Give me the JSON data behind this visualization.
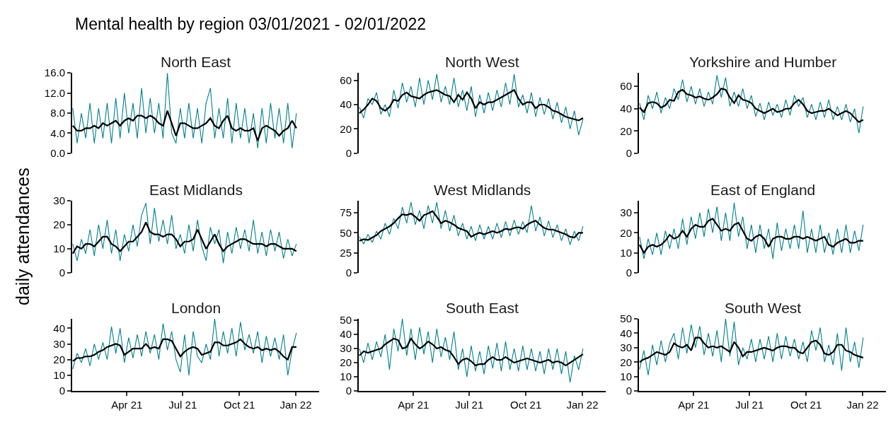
{
  "chart_data": [
    {
      "type": "line",
      "title": "North East",
      "categories": [
        null,
        null,
        null,
        null,
        null,
        null,
        null,
        null,
        null,
        null,
        null,
        null,
        null,
        null,
        null,
        null,
        null,
        null,
        null,
        null,
        null,
        null,
        null,
        null,
        null,
        null,
        null,
        null,
        null,
        null,
        null,
        null,
        null,
        null,
        null,
        null,
        null,
        null,
        null,
        null,
        null,
        null,
        null,
        null,
        null,
        null,
        null,
        null,
        null,
        null,
        null,
        null,
        null
      ],
      "annotations": [
        "Mental health by region 03/01/2021 - 02/01/2022"
      ],
      "tick_labels": "y",
      "ylim": [
        0,
        16
      ],
      "yticks": [
        {
          "value": 0,
          "label": "0.0"
        },
        {
          "value": 4,
          "label": "4.0"
        },
        {
          "value": 8,
          "label": "8.0"
        },
        {
          "value": 12,
          "label": "12.0"
        },
        {
          "value": 16,
          "label": "16.0"
        }
      ],
      "series": [
        {
          "color": "#00808f",
          "values": [
            9,
            2,
            8,
            3,
            10,
            2,
            9,
            3,
            10,
            2,
            11,
            3,
            12,
            4,
            10,
            3,
            13,
            4,
            11,
            4,
            10,
            3,
            16,
            4,
            2,
            9,
            3,
            10,
            3,
            9,
            2,
            10,
            13,
            3,
            9,
            3,
            11,
            2,
            10,
            3,
            9,
            2,
            8,
            1,
            9,
            2,
            10,
            3,
            9,
            2,
            10,
            1,
            8
          ]
        },
        {
          "color": "#000000",
          "values": [
            5.5,
            4.5,
            4.5,
            5,
            5,
            5.5,
            5,
            6,
            5.5,
            6,
            6.5,
            5.5,
            6.5,
            7,
            6.5,
            7.5,
            7.5,
            7,
            7.5,
            7,
            6,
            5.5,
            8.5,
            6,
            3.5,
            6,
            6,
            5.5,
            5,
            5,
            5.5,
            6,
            7,
            5.5,
            5,
            6.5,
            7.5,
            5,
            4.5,
            5,
            4.5,
            4.5,
            5,
            2.5,
            5,
            5.5,
            5,
            4.5,
            3.5,
            4.5,
            5,
            6.5,
            5
          ]
        }
      ]
    },
    {
      "type": "line",
      "title": "North West",
      "categories": [
        null,
        null,
        null,
        null,
        null,
        null,
        null,
        null,
        null,
        null,
        null,
        null,
        null,
        null,
        null,
        null,
        null,
        null,
        null,
        null,
        null,
        null,
        null,
        null,
        null,
        null,
        null,
        null,
        null,
        null,
        null,
        null,
        null,
        null,
        null,
        null,
        null,
        null,
        null,
        null,
        null,
        null,
        null,
        null,
        null,
        null,
        null,
        null,
        null,
        null,
        null,
        null,
        null
      ],
      "tick_labels": "y",
      "ylim": [
        0,
        66
      ],
      "yticks": [
        0,
        20,
        40,
        60
      ],
      "series": [
        {
          "color": "#00808f",
          "values": [
            38,
            29,
            45,
            40,
            50,
            32,
            40,
            30,
            52,
            37,
            58,
            42,
            55,
            38,
            62,
            40,
            60,
            44,
            65,
            42,
            55,
            40,
            62,
            38,
            52,
            35,
            55,
            30,
            48,
            33,
            50,
            35,
            52,
            38,
            58,
            40,
            65,
            38,
            48,
            33,
            50,
            30,
            46,
            32,
            45,
            28,
            42,
            25,
            38,
            20,
            35,
            15,
            28
          ]
        },
        {
          "color": "#000000",
          "values": [
            33,
            36,
            40,
            45,
            43,
            37,
            35,
            38,
            44,
            43,
            48,
            50,
            47,
            46,
            45,
            48,
            50,
            51,
            52,
            50,
            48,
            47,
            42,
            48,
            44,
            50,
            45,
            37,
            42,
            40,
            42,
            42,
            44,
            46,
            48,
            50,
            52,
            45,
            40,
            42,
            42,
            37,
            40,
            40,
            38,
            35,
            34,
            32,
            30,
            29,
            28,
            27,
            29
          ]
        }
      ]
    },
    {
      "type": "line",
      "title": "Yorkshire and Humber",
      "categories": [
        null,
        null,
        null,
        null,
        null,
        null,
        null,
        null,
        null,
        null,
        null,
        null,
        null,
        null,
        null,
        null,
        null,
        null,
        null,
        null,
        null,
        null,
        null,
        null,
        null,
        null,
        null,
        null,
        null,
        null,
        null,
        null,
        null,
        null,
        null,
        null,
        null,
        null,
        null,
        null,
        null,
        null,
        null,
        null,
        null,
        null,
        null,
        null,
        null,
        null,
        null,
        null,
        null
      ],
      "tick_labels": "y",
      "ylim": [
        0,
        72
      ],
      "yticks": [
        0,
        20,
        40,
        60
      ],
      "series": [
        {
          "color": "#00808f",
          "values": [
            45,
            30,
            52,
            40,
            55,
            36,
            50,
            40,
            58,
            48,
            66,
            46,
            60,
            44,
            58,
            42,
            55,
            44,
            70,
            50,
            68,
            42,
            55,
            42,
            58,
            40,
            52,
            33,
            45,
            30,
            46,
            34,
            44,
            32,
            48,
            34,
            52,
            42,
            50,
            32,
            44,
            30,
            46,
            32,
            48,
            30,
            42,
            30,
            44,
            28,
            40,
            18,
            42
          ]
        },
        {
          "color": "#000000",
          "values": [
            41,
            37,
            45,
            46,
            45,
            41,
            43,
            48,
            47,
            55,
            57,
            53,
            52,
            50,
            51,
            49,
            48,
            50,
            53,
            58,
            57,
            50,
            45,
            52,
            48,
            47,
            45,
            40,
            38,
            36,
            38,
            40,
            37,
            38,
            40,
            40,
            45,
            48,
            44,
            38,
            36,
            37,
            38,
            38,
            40,
            37,
            34,
            36,
            38,
            36,
            32,
            28,
            30
          ]
        }
      ]
    },
    {
      "type": "line",
      "title": "East Midlands",
      "categories": [
        null,
        null,
        null,
        null,
        null,
        null,
        null,
        null,
        null,
        null,
        null,
        null,
        null,
        null,
        null,
        null,
        null,
        null,
        null,
        null,
        null,
        null,
        null,
        null,
        null,
        null,
        null,
        null,
        null,
        null,
        null,
        null,
        null,
        null,
        null,
        null,
        null,
        null,
        null,
        null,
        null,
        null,
        null,
        null,
        null,
        null,
        null,
        null,
        null,
        null,
        null,
        null,
        null
      ],
      "ylabel": "daily attendances",
      "tick_labels": "y",
      "ylim": [
        0,
        30
      ],
      "yticks": [
        0,
        10,
        20,
        30
      ],
      "series": [
        {
          "color": "#00808f",
          "values": [
            12,
            5,
            14,
            8,
            18,
            7,
            20,
            10,
            22,
            8,
            18,
            5,
            16,
            9,
            20,
            11,
            24,
            29,
            12,
            27,
            13,
            22,
            12,
            24,
            10,
            16,
            8,
            20,
            9,
            22,
            11,
            5,
            19,
            12,
            18,
            4,
            17,
            8,
            19,
            10,
            18,
            9,
            22,
            8,
            17,
            7,
            18,
            9,
            17,
            6,
            14,
            7,
            12
          ]
        },
        {
          "color": "#000000",
          "values": [
            8,
            11,
            10,
            12,
            12,
            11,
            13,
            15,
            15,
            12,
            11,
            9,
            11,
            13,
            13,
            15,
            17,
            21,
            17,
            16,
            16,
            15,
            16,
            16,
            14,
            11,
            13,
            13,
            14,
            18,
            14,
            10,
            13,
            16,
            12,
            9,
            11,
            12,
            13,
            14,
            14,
            13,
            12,
            12,
            12,
            11,
            12,
            12,
            11,
            10,
            10,
            10,
            9
          ]
        }
      ]
    },
    {
      "type": "line",
      "title": "West Midlands",
      "categories": [
        null,
        null,
        null,
        null,
        null,
        null,
        null,
        null,
        null,
        null,
        null,
        null,
        null,
        null,
        null,
        null,
        null,
        null,
        null,
        null,
        null,
        null,
        null,
        null,
        null,
        null,
        null,
        null,
        null,
        null,
        null,
        null,
        null,
        null,
        null,
        null,
        null,
        null,
        null,
        null,
        null,
        null,
        null,
        null,
        null,
        null,
        null,
        null,
        null,
        null,
        null,
        null,
        null
      ],
      "tick_labels": "y",
      "ylim": [
        0,
        90
      ],
      "yticks": [
        0,
        25,
        50,
        75
      ],
      "series": [
        {
          "color": "#00808f",
          "values": [
            45,
            36,
            48,
            38,
            52,
            42,
            62,
            48,
            68,
            55,
            82,
            62,
            88,
            60,
            78,
            55,
            84,
            62,
            88,
            55,
            78,
            52,
            72,
            46,
            62,
            42,
            58,
            40,
            60,
            42,
            58,
            42,
            62,
            44,
            64,
            46,
            66,
            48,
            64,
            50,
            84,
            52,
            70,
            46,
            65,
            44,
            60,
            40,
            55,
            35,
            52,
            40,
            58
          ]
        },
        {
          "color": "#000000",
          "values": [
            40,
            42,
            41,
            44,
            47,
            52,
            55,
            58,
            62,
            68,
            73,
            72,
            74,
            70,
            65,
            72,
            74,
            77,
            70,
            62,
            65,
            63,
            60,
            56,
            54,
            52,
            45,
            48,
            50,
            48,
            50,
            52,
            50,
            52,
            55,
            54,
            56,
            57,
            55,
            60,
            63,
            65,
            60,
            56,
            54,
            54,
            52,
            50,
            48,
            45,
            44,
            50,
            50
          ]
        }
      ]
    },
    {
      "type": "line",
      "title": "East of England",
      "categories": [
        null,
        null,
        null,
        null,
        null,
        null,
        null,
        null,
        null,
        null,
        null,
        null,
        null,
        null,
        null,
        null,
        null,
        null,
        null,
        null,
        null,
        null,
        null,
        null,
        null,
        null,
        null,
        null,
        null,
        null,
        null,
        null,
        null,
        null,
        null,
        null,
        null,
        null,
        null,
        null,
        null,
        null,
        null,
        null,
        null,
        null,
        null,
        null,
        null,
        null,
        null,
        null,
        null
      ],
      "tick_labels": "y",
      "ylim": [
        0,
        36
      ],
      "yticks": [
        0,
        10,
        20,
        30
      ],
      "series": [
        {
          "color": "#00808f",
          "values": [
            18,
            7,
            17,
            9,
            20,
            9,
            21,
            12,
            22,
            12,
            27,
            14,
            28,
            17,
            30,
            18,
            32,
            20,
            33,
            16,
            30,
            16,
            35,
            18,
            28,
            12,
            24,
            10,
            24,
            12,
            22,
            7,
            25,
            11,
            22,
            12,
            24,
            12,
            31,
            10,
            22,
            10,
            24,
            10,
            20,
            9,
            22,
            10,
            24,
            10,
            21,
            11,
            24
          ]
        },
        {
          "color": "#000000",
          "values": [
            14,
            10,
            13,
            14,
            13,
            14,
            16,
            19,
            17,
            18,
            21,
            18,
            22,
            24,
            23,
            23,
            26,
            27,
            24,
            21,
            22,
            21,
            24,
            25,
            21,
            17,
            16,
            18,
            19,
            17,
            13,
            17,
            18,
            18,
            17,
            17,
            18,
            18,
            17,
            18,
            17,
            16,
            17,
            18,
            14,
            13,
            15,
            16,
            17,
            15,
            15,
            16,
            16
          ]
        }
      ]
    },
    {
      "type": "line",
      "title": "London",
      "x": [
        "2021-01-03",
        "2021-01-10",
        "2021-01-17",
        "2021-01-24",
        "2021-01-31",
        "2021-02-07",
        "2021-02-14",
        "2021-02-21",
        "2021-02-28",
        "2021-03-07",
        "2021-03-14",
        "2021-03-21",
        "2021-03-28",
        "2021-04-04",
        "2021-04-11",
        "2021-04-18",
        "2021-04-25",
        "2021-05-02",
        "2021-05-09",
        "2021-05-16",
        "2021-05-23",
        "2021-05-30",
        "2021-06-06",
        "2021-06-13",
        "2021-06-20",
        "2021-06-27",
        "2021-07-04",
        "2021-07-11",
        "2021-07-18",
        "2021-07-25",
        "2021-08-01",
        "2021-08-08",
        "2021-08-15",
        "2021-08-22",
        "2021-08-29",
        "2021-09-05",
        "2021-09-12",
        "2021-09-19",
        "2021-09-26",
        "2021-10-03",
        "2021-10-10",
        "2021-10-17",
        "2021-10-24",
        "2021-10-31",
        "2021-11-07",
        "2021-11-14",
        "2021-11-21",
        "2021-11-28",
        "2021-12-05",
        "2021-12-12",
        "2021-12-19",
        "2021-12-26",
        "2022-01-02"
      ],
      "xlim": [
        "2021-01-02",
        "2022-02-08"
      ],
      "xticks": [
        {
          "value": "2021-04-01",
          "label": "Apr 21"
        },
        {
          "value": "2021-07-01",
          "label": "Jul 21"
        },
        {
          "value": "2021-10-01",
          "label": "Oct 21"
        },
        {
          "value": "2022-01-01",
          "label": "Jan 22"
        }
      ],
      "ylim": [
        0,
        46
      ],
      "yticks": [
        0,
        10,
        20,
        30,
        40
      ],
      "series": [
        {
          "color": "#00808f",
          "values": [
            14,
            24,
            18,
            27,
            16,
            30,
            20,
            31,
            20,
            41,
            24,
            40,
            18,
            34,
            21,
            36,
            22,
            38,
            24,
            36,
            20,
            43,
            26,
            38,
            20,
            12,
            36,
            10,
            38,
            22,
            18,
            30,
            20,
            46,
            22,
            38,
            24,
            40,
            22,
            44,
            26,
            36,
            24,
            38,
            18,
            35,
            22,
            34,
            20,
            36,
            10,
            26,
            37
          ]
        },
        {
          "color": "#000000",
          "values": [
            19,
            21,
            21,
            22,
            22,
            23,
            25,
            26,
            28,
            29,
            30,
            29,
            23,
            25,
            27,
            27,
            27,
            30,
            27,
            28,
            27,
            33,
            33,
            32,
            27,
            22,
            25,
            27,
            28,
            27,
            23,
            24,
            25,
            31,
            31,
            29,
            29,
            30,
            31,
            33,
            30,
            28,
            27,
            28,
            26,
            27,
            26,
            27,
            25,
            22,
            20,
            28,
            28
          ]
        }
      ]
    },
    {
      "type": "line",
      "title": "South East",
      "x": [
        "2021-01-03",
        "2021-01-10",
        "2021-01-17",
        "2021-01-24",
        "2021-01-31",
        "2021-02-07",
        "2021-02-14",
        "2021-02-21",
        "2021-02-28",
        "2021-03-07",
        "2021-03-14",
        "2021-03-21",
        "2021-03-28",
        "2021-04-04",
        "2021-04-11",
        "2021-04-18",
        "2021-04-25",
        "2021-05-02",
        "2021-05-09",
        "2021-05-16",
        "2021-05-23",
        "2021-05-30",
        "2021-06-06",
        "2021-06-13",
        "2021-06-20",
        "2021-06-27",
        "2021-07-04",
        "2021-07-11",
        "2021-07-18",
        "2021-07-25",
        "2021-08-01",
        "2021-08-08",
        "2021-08-15",
        "2021-08-22",
        "2021-08-29",
        "2021-09-05",
        "2021-09-12",
        "2021-09-19",
        "2021-09-26",
        "2021-10-03",
        "2021-10-10",
        "2021-10-17",
        "2021-10-24",
        "2021-10-31",
        "2021-11-07",
        "2021-11-14",
        "2021-11-21",
        "2021-11-28",
        "2021-12-05",
        "2021-12-12",
        "2021-12-19",
        "2021-12-26",
        "2022-01-02"
      ],
      "xlim": [
        "2021-01-02",
        "2022-02-08"
      ],
      "xticks": [
        {
          "value": "2021-04-01",
          "label": "Apr 21"
        },
        {
          "value": "2021-07-01",
          "label": "Jul 21"
        },
        {
          "value": "2021-10-01",
          "label": "Oct 21"
        },
        {
          "value": "2022-01-01",
          "label": "Jan 22"
        }
      ],
      "ylim": [
        0,
        51
      ],
      "yticks": [
        0,
        10,
        20,
        30,
        40,
        50
      ],
      "series": [
        {
          "color": "#00808f",
          "values": [
            30,
            20,
            34,
            22,
            35,
            24,
            40,
            15,
            44,
            28,
            51,
            25,
            44,
            22,
            45,
            26,
            42,
            20,
            44,
            24,
            38,
            22,
            42,
            15,
            30,
            10,
            32,
            14,
            28,
            12,
            32,
            16,
            34,
            14,
            35,
            15,
            30,
            14,
            32,
            15,
            30,
            14,
            28,
            12,
            30,
            15,
            30,
            12,
            28,
            6,
            25,
            15,
            30
          ]
        },
        {
          "color": "#000000",
          "values": [
            25,
            28,
            27,
            28,
            29,
            30,
            33,
            35,
            37,
            36,
            30,
            31,
            37,
            33,
            30,
            32,
            35,
            33,
            30,
            31,
            29,
            28,
            24,
            19,
            22,
            23,
            21,
            18,
            19,
            19,
            22,
            24,
            22,
            22,
            24,
            22,
            20,
            21,
            22,
            23,
            22,
            21,
            20,
            21,
            22,
            20,
            21,
            20,
            18,
            20,
            22,
            24,
            26
          ]
        }
      ]
    },
    {
      "type": "line",
      "title": "South West",
      "x": [
        "2021-01-03",
        "2021-01-10",
        "2021-01-17",
        "2021-01-24",
        "2021-01-31",
        "2021-02-07",
        "2021-02-14",
        "2021-02-21",
        "2021-02-28",
        "2021-03-07",
        "2021-03-14",
        "2021-03-21",
        "2021-03-28",
        "2021-04-04",
        "2021-04-11",
        "2021-04-18",
        "2021-04-25",
        "2021-05-02",
        "2021-05-09",
        "2021-05-16",
        "2021-05-23",
        "2021-05-30",
        "2021-06-06",
        "2021-06-13",
        "2021-06-20",
        "2021-06-27",
        "2021-07-04",
        "2021-07-11",
        "2021-07-18",
        "2021-07-25",
        "2021-08-01",
        "2021-08-08",
        "2021-08-15",
        "2021-08-22",
        "2021-08-29",
        "2021-09-05",
        "2021-09-12",
        "2021-09-19",
        "2021-09-26",
        "2021-10-03",
        "2021-10-10",
        "2021-10-17",
        "2021-10-24",
        "2021-10-31",
        "2021-11-07",
        "2021-11-14",
        "2021-11-21",
        "2021-11-28",
        "2021-12-05",
        "2021-12-12",
        "2021-12-19",
        "2021-12-26",
        "2022-01-02"
      ],
      "xlim": [
        "2021-01-02",
        "2022-02-08"
      ],
      "xticks": [
        {
          "value": "2021-04-01",
          "label": "Apr 21"
        },
        {
          "value": "2021-07-01",
          "label": "Jul 21"
        },
        {
          "value": "2021-10-01",
          "label": "Oct 21"
        },
        {
          "value": "2022-01-01",
          "label": "Jan 22"
        }
      ],
      "ylim": [
        0,
        50
      ],
      "yticks": [
        0,
        10,
        20,
        30,
        40,
        50
      ],
      "series": [
        {
          "color": "#00808f",
          "values": [
            15,
            28,
            11,
            32,
            18,
            35,
            20,
            33,
            40,
            22,
            44,
            26,
            46,
            30,
            45,
            25,
            40,
            24,
            42,
            20,
            50,
            24,
            48,
            18,
            30,
            22,
            36,
            20,
            36,
            22,
            38,
            20,
            40,
            22,
            38,
            24,
            36,
            22,
            34,
            20,
            42,
            28,
            44,
            20,
            32,
            18,
            40,
            14,
            44,
            20,
            34,
            16,
            37
          ]
        },
        {
          "color": "#000000",
          "values": [
            20,
            22,
            23,
            25,
            27,
            26,
            25,
            27,
            33,
            31,
            30,
            32,
            28,
            37,
            37,
            33,
            30,
            31,
            30,
            31,
            29,
            27,
            34,
            30,
            24,
            27,
            27,
            28,
            29,
            30,
            29,
            28,
            30,
            31,
            31,
            30,
            30,
            27,
            26,
            30,
            34,
            35,
            32,
            26,
            25,
            27,
            32,
            32,
            28,
            27,
            25,
            24,
            23
          ]
        }
      ]
    }
  ]
}
